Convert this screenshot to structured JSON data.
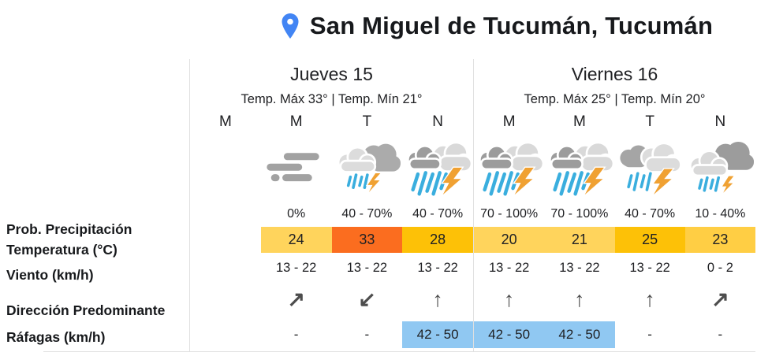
{
  "header": {
    "title": "San Miguel de Tucumán, Tucumán",
    "pin_icon": "location-pin-icon"
  },
  "row_labels": [
    "Prob. Precipitación",
    "Temperatura (°C)",
    "Viento (km/h)",
    "Dirección Predominante",
    "Ráfagas (km/h)"
  ],
  "colors": {
    "pin_blue": "#4285f4",
    "border_gray": "#e0e0e0",
    "rain_blue": "#3aaede",
    "lightning_orange": "#f0a132",
    "temp_light_amber": "#ffd45c",
    "temp_mid_amber": "#ffce44",
    "temp_golden": "#fdc107",
    "temp_hot_orange": "#fb6d1f",
    "gust_blue": "#90c8f2"
  },
  "days": [
    {
      "name": "Jueves 15",
      "temp_range": "Temp. Máx 33° | Temp. Mín 21°",
      "columns": [
        {
          "period": "M",
          "icon": "",
          "prob": "",
          "temp": "",
          "temp_bg": "",
          "wind": "",
          "dir": "",
          "gust": "",
          "gust_bg": ""
        },
        {
          "period": "M",
          "icon": "fog-icon",
          "prob": "0%",
          "temp": "24",
          "temp_bg": "#ffd45c",
          "wind": "13 - 22",
          "dir": "↗",
          "gust": "-",
          "gust_bg": ""
        },
        {
          "period": "T",
          "icon": "storm-light-rain-icon",
          "prob": "40 - 70%",
          "temp": "33",
          "temp_bg": "#fb6d1f",
          "wind": "13 - 22",
          "dir": "↙",
          "gust": "-",
          "gust_bg": ""
        },
        {
          "period": "N",
          "icon": "storm-heavy-rain-icon",
          "prob": "40 - 70%",
          "temp": "28",
          "temp_bg": "#fdc107",
          "wind": "13 - 22",
          "dir": "↑",
          "gust": "42 - 50",
          "gust_bg": "#90c8f2"
        }
      ]
    },
    {
      "name": "Viernes 16",
      "temp_range": "Temp. Máx 25° | Temp. Mín 20°",
      "columns": [
        {
          "period": "M",
          "icon": "storm-heavy-rain-icon",
          "prob": "70 - 100%",
          "temp": "20",
          "temp_bg": "#ffd45c",
          "wind": "13 - 22",
          "dir": "↑",
          "gust": "42 - 50",
          "gust_bg": "#90c8f2"
        },
        {
          "period": "M",
          "icon": "storm-heavy-rain-icon",
          "prob": "70 - 100%",
          "temp": "21",
          "temp_bg": "#ffd45c",
          "wind": "13 - 22",
          "dir": "↑",
          "gust": "42 - 50",
          "gust_bg": "#90c8f2"
        },
        {
          "period": "T",
          "icon": "storm-medium-rain-icon",
          "prob": "40 - 70%",
          "temp": "25",
          "temp_bg": "#fdc107",
          "wind": "13 - 22",
          "dir": "↑",
          "gust": "-",
          "gust_bg": ""
        },
        {
          "period": "N",
          "icon": "storm-drizzle-icon",
          "prob": "10 - 40%",
          "temp": "23",
          "temp_bg": "#ffce44",
          "wind": "0 - 2",
          "dir": "↗",
          "gust": "-",
          "gust_bg": ""
        }
      ]
    }
  ]
}
